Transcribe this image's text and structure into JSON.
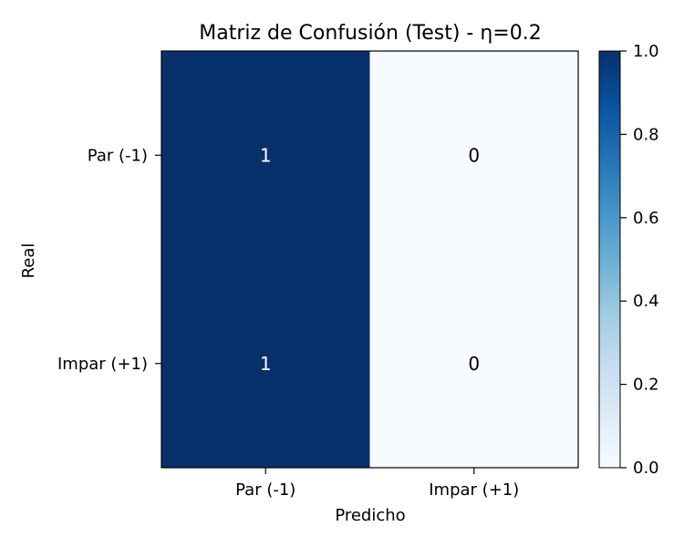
{
  "chart_data": {
    "type": "heatmap",
    "title": "Matriz de Confusión (Test) - η=0.2",
    "xlabel": "Predicho",
    "ylabel": "Real",
    "x_categories": [
      "Par (-1)",
      "Impar (+1)"
    ],
    "y_categories": [
      "Par (-1)",
      "Impar (+1)"
    ],
    "values": [
      [
        1,
        0
      ],
      [
        1,
        0
      ]
    ],
    "cell_labels": [
      [
        "1",
        "0"
      ],
      [
        "1",
        "0"
      ]
    ],
    "colorbar": {
      "range": [
        0.0,
        1.0
      ],
      "ticks": [
        "0.0",
        "0.2",
        "0.4",
        "0.6",
        "0.8",
        "1.0"
      ],
      "colormap": "Blues",
      "color_min": "#f7fbff",
      "color_max": "#08306b"
    }
  }
}
